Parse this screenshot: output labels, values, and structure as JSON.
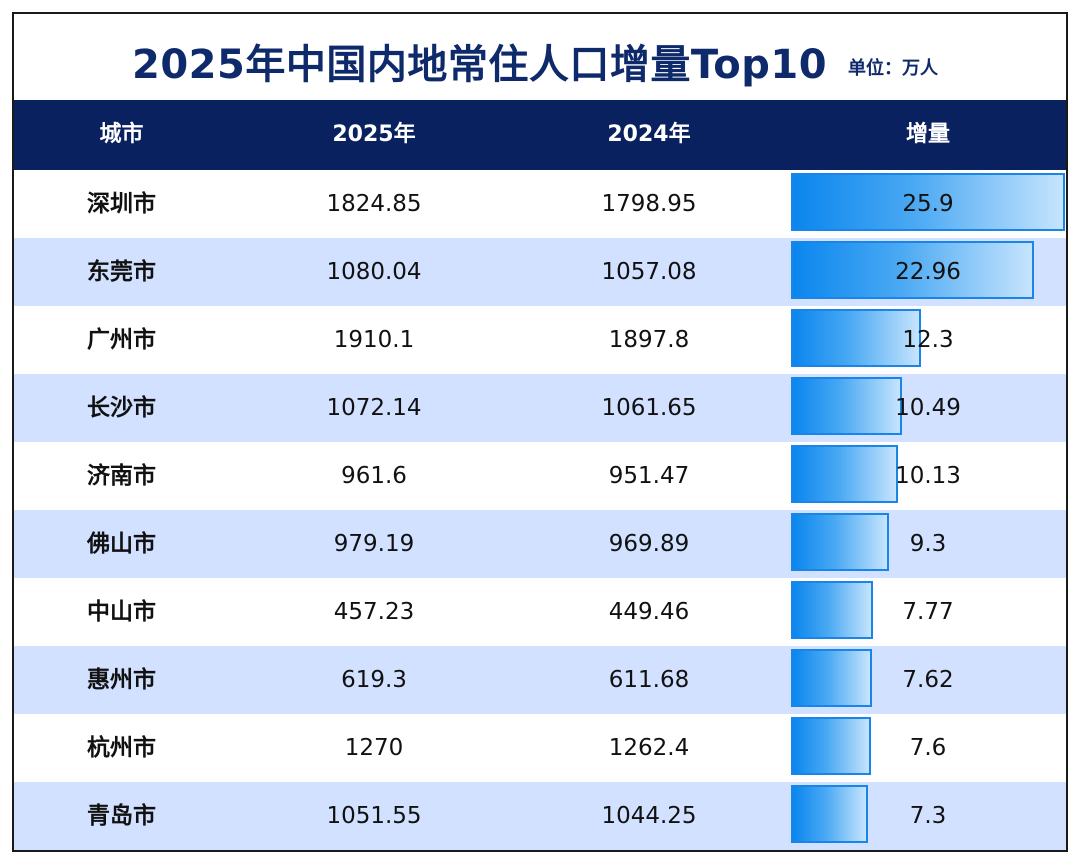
{
  "title": "2025年中国内地常住人口增量Top10",
  "unit": "单位：万人",
  "columns": [
    "城市",
    "2025年",
    "2024年",
    "增量"
  ],
  "chart_data": {
    "type": "table",
    "columns": [
      "城市",
      "2025年",
      "2024年",
      "增量"
    ],
    "rows": [
      {
        "city": "深圳市",
        "y2025": "1824.85",
        "y2024": "1798.95",
        "increase": "25.9"
      },
      {
        "city": "东莞市",
        "y2025": "1080.04",
        "y2024": "1057.08",
        "increase": "22.96"
      },
      {
        "city": "广州市",
        "y2025": "1910.1",
        "y2024": "1897.8",
        "increase": "12.3"
      },
      {
        "city": "长沙市",
        "y2025": "1072.14",
        "y2024": "1061.65",
        "increase": "10.49"
      },
      {
        "city": "济南市",
        "y2025": "961.6",
        "y2024": "951.47",
        "increase": "10.13"
      },
      {
        "city": "佛山市",
        "y2025": "979.19",
        "y2024": "969.89",
        "increase": "9.3"
      },
      {
        "city": "中山市",
        "y2025": "457.23",
        "y2024": "449.46",
        "increase": "7.77"
      },
      {
        "city": "惠州市",
        "y2025": "619.3",
        "y2024": "611.68",
        "increase": "7.62"
      },
      {
        "city": "杭州市",
        "y2025": "1270",
        "y2024": "1262.4",
        "increase": "7.6"
      },
      {
        "city": "青岛市",
        "y2025": "1051.55",
        "y2024": "1044.25",
        "increase": "7.3"
      }
    ]
  },
  "colors": {
    "header_bg": "#0a215f",
    "title": "#0f2a6b",
    "alt_row": "#d2e1ff",
    "bar_start": "#0a86ee",
    "bar_end": "#c6e4fd"
  }
}
